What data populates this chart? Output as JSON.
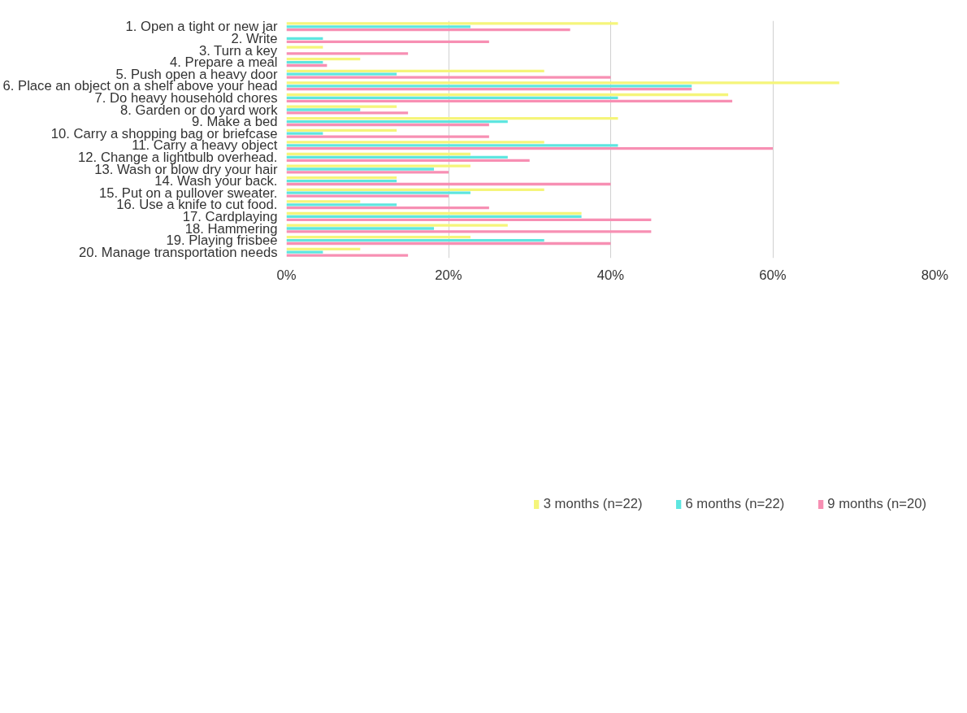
{
  "chart_data": {
    "type": "bar",
    "orientation": "horizontal",
    "categories": [
      "1. Open a tight or new jar",
      "2. Write",
      "3. Turn a key",
      "4. Prepare a meal",
      "5. Push open a heavy door",
      "6. Place an object on a shelf above your head",
      "7. Do heavy household chores",
      "8. Garden or do yard work",
      "9. Make a bed",
      "10. Carry a shopping bag or briefcase",
      "11. Carry a heavy object",
      "12. Change a lightbulb overhead.",
      "13. Wash or blow dry your hair",
      "14. Wash your back.",
      "15. Put on a pullover sweater.",
      "16. Use a knife to cut food.",
      "17. Cardplaying",
      "18. Hammering",
      "19. Playing frisbee",
      "20. Manage transportation needs"
    ],
    "series": [
      {
        "name": "3 months (n=22)",
        "color": "#f5f57a",
        "values": [
          40.9,
          0,
          4.5,
          9.1,
          31.8,
          68.2,
          54.5,
          13.6,
          40.9,
          13.6,
          31.8,
          22.7,
          22.7,
          13.6,
          31.8,
          9.1,
          36.4,
          27.3,
          22.7,
          9.1
        ]
      },
      {
        "name": "6 months (n=22)",
        "color": "#5ee6e0",
        "values": [
          22.7,
          4.5,
          0,
          4.5,
          13.6,
          50,
          40.9,
          9.1,
          27.3,
          4.5,
          40.9,
          27.3,
          18.2,
          13.6,
          22.7,
          13.6,
          36.4,
          18.2,
          31.8,
          4.5
        ]
      },
      {
        "name": "9 months (n=20)",
        "color": "#f78fb3",
        "values": [
          35,
          25,
          15,
          5,
          40,
          50,
          55,
          15,
          25,
          25,
          60,
          30,
          20,
          40,
          20,
          25,
          45,
          45,
          40,
          15
        ]
      }
    ],
    "xlim": [
      0,
      80
    ],
    "xticks": [
      {
        "value": 0,
        "label": "0%"
      },
      {
        "value": 20,
        "label": "20%"
      },
      {
        "value": 40,
        "label": "40%"
      },
      {
        "value": 60,
        "label": "60%"
      },
      {
        "value": 80,
        "label": "80%"
      }
    ],
    "grid": "x",
    "legend": "bottom"
  }
}
